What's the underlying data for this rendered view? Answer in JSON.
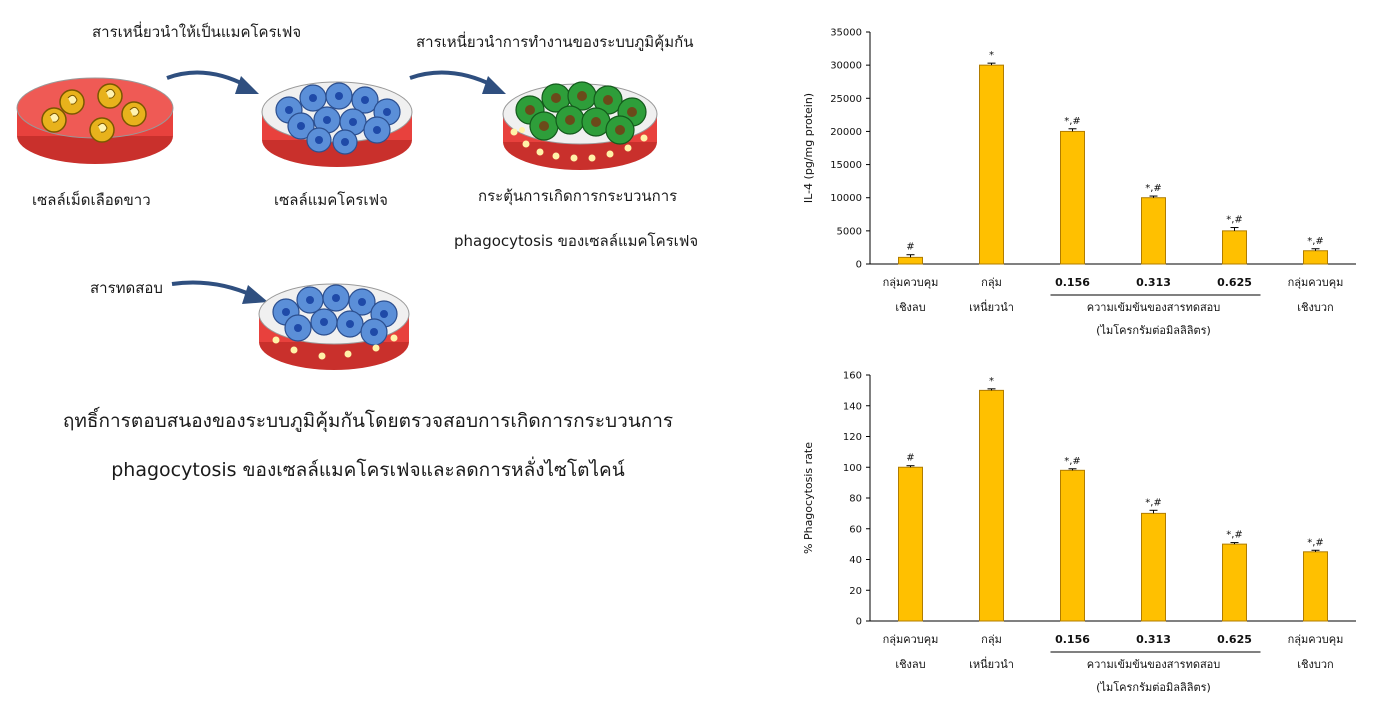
{
  "diagram": {
    "labels": {
      "inducer": "สารเหนี่ยวนำให้เป็นแมคโครเฟจ",
      "immune_inducer": "สารเหนี่ยวนำการทำงานของระบบภูมิคุ้มกัน",
      "white_blood_cells": "เซลล์เม็ดเลือดขาว",
      "macrophage": "เซลล์แมคโครเฟจ",
      "stimulate_line1": "กระตุ้นการเกิดการกระบวนการ",
      "stimulate_line2": "phagocytosis ของเซลล์แมคโครเฟจ",
      "test_substance": "สารทดสอบ"
    },
    "caption_line1": "ฤทธิ์การตอบสนองของระบบภูมิคุ้มกันโดยตรวจสอบการเกิดการกระบวนการ",
    "caption_line2": "phagocytosis ของเซลล์แมคโครเฟจและลดการหลั่งไซโตไคน์"
  },
  "colors": {
    "bar": "#FFC000",
    "bar_edge": "#B07C00",
    "dish_fill": "#E8413D",
    "wbc": "#E8B21C",
    "macrophage": "#5B8FD8",
    "activated": "#2E9E3A",
    "arrow": "#2F4F7F"
  },
  "chart_data": [
    {
      "type": "bar",
      "ylabel": "IL-4 (pg/mg protein)",
      "ylim": [
        0,
        35000
      ],
      "yticks": [
        "0",
        "5000",
        "10000",
        "15000",
        "20000",
        "25000",
        "30000",
        "35000"
      ],
      "categories": [
        [
          "กลุ่มควบคุม",
          "เชิงลบ"
        ],
        [
          "กลุ่ม",
          "เหนี่ยวนำ"
        ],
        [
          "0.156",
          ""
        ],
        [
          "0.313",
          ""
        ],
        [
          "0.625",
          ""
        ],
        [
          "กลุ่มควบคุม",
          "เชิงบวก"
        ]
      ],
      "values": [
        1000,
        30000,
        20000,
        10000,
        5000,
        2000
      ],
      "errors": [
        400,
        300,
        400,
        250,
        500,
        300
      ],
      "annotations": [
        "#",
        "*",
        "*,#",
        "*,#",
        "*,#",
        "*,#"
      ],
      "group_label_line1": "ความเข้มข้นของสารทดสอบ",
      "group_label_line2": "(ไมโครกรัมต่อมิลลิลิตร)",
      "grid": false
    },
    {
      "type": "bar",
      "ylabel": "% Phagocytosis rate",
      "ylim": [
        0,
        160
      ],
      "yticks": [
        "0",
        "20",
        "40",
        "60",
        "80",
        "100",
        "120",
        "140",
        "160"
      ],
      "categories": [
        [
          "กลุ่มควบคุม",
          "เชิงลบ"
        ],
        [
          "กลุ่ม",
          "เหนี่ยวนำ"
        ],
        [
          "0.156",
          ""
        ],
        [
          "0.313",
          ""
        ],
        [
          "0.625",
          ""
        ],
        [
          "กลุ่มควบคุม",
          "เชิงบวก"
        ]
      ],
      "values": [
        100,
        150,
        98,
        70,
        50,
        45
      ],
      "errors": [
        1,
        1,
        1,
        2,
        1,
        1
      ],
      "annotations": [
        "#",
        "*",
        "*,#",
        "*,#",
        "*,#",
        "*,#"
      ],
      "group_label_line1": "ความเข้มข้นของสารทดสอบ",
      "group_label_line2": "(ไมโครกรัมต่อมิลลิลิตร)",
      "grid": false
    }
  ]
}
